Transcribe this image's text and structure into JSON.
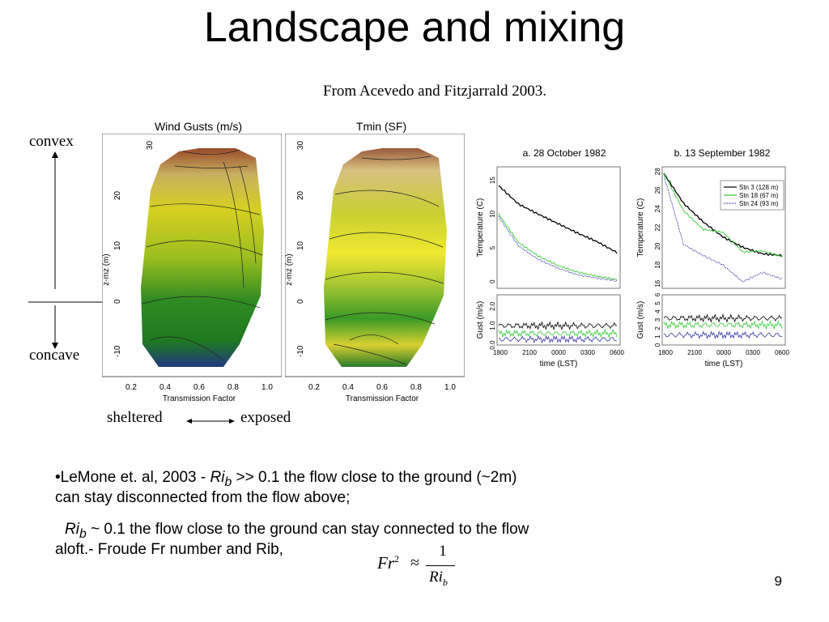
{
  "slide": {
    "title": "Landscape and mixing",
    "citation": "From Acevedo and Fitzjarrald 2003.",
    "page_number": "9"
  },
  "contour_panels": [
    {
      "title": "Wind Gusts (m/s)",
      "xlabel": "Transmission Factor",
      "ylabel": "z-mz (m)",
      "x_ticks": [
        "0.2",
        "0.4",
        "0.6",
        "0.8",
        "1.0"
      ],
      "y_ticks": [
        "30",
        "20",
        "10",
        "0",
        "-10"
      ]
    },
    {
      "title": "Tmin (SF)",
      "xlabel": "Transmission Factor",
      "ylabel": "z-mz (m)",
      "x_ticks": [
        "0.2",
        "0.4",
        "0.6",
        "0.8",
        "1.0"
      ],
      "y_ticks": [
        "30",
        "20",
        "10",
        "0",
        "-10"
      ]
    }
  ],
  "annotations": {
    "convex": "convex",
    "concave": "concave",
    "sheltered": "sheltered",
    "exposed": "exposed"
  },
  "chart_data": [
    {
      "type": "line",
      "title": "a. 28 October 1982",
      "xlabel": "time (LST)",
      "x_ticks": [
        "1800",
        "2100",
        "0000",
        "0300",
        "0600"
      ],
      "top_ylabel": "Temperature (C)",
      "top_y_ticks": [
        "15",
        "10",
        "5",
        "0"
      ],
      "top_ylim": [
        -1,
        17
      ],
      "bottom_ylabel": "Gust (m/s)",
      "bottom_y_ticks": [
        "0.0",
        "1.0",
        "2.0"
      ],
      "bottom_ylim": [
        0,
        2.6
      ],
      "temperature_series": [
        {
          "name": "Stn 3 (128 m)",
          "color": "#000000",
          "y": [
            14.2,
            11.5,
            10.0,
            8.6,
            7.2,
            5.9,
            4.3
          ]
        },
        {
          "name": "Stn 18 (67 m)",
          "color": "#33cc33",
          "y": [
            10.0,
            5.8,
            3.8,
            2.4,
            1.4,
            0.8,
            0.3
          ]
        },
        {
          "name": "Stn 24 (93 m)",
          "color": "#3333aa",
          "y": [
            9.6,
            5.3,
            3.3,
            2.0,
            1.0,
            0.5,
            0.1
          ]
        }
      ],
      "gust_series": [
        {
          "color": "#000000",
          "level": 1.0
        },
        {
          "color": "#33cc33",
          "level": 0.6
        },
        {
          "color": "#3333aa",
          "level": 0.3
        }
      ]
    },
    {
      "type": "line",
      "title": "b. 13 September 1982",
      "xlabel": "time (LST)",
      "x_ticks": [
        "1800",
        "2100",
        "0000",
        "0300",
        "0600"
      ],
      "top_ylabel": "Temperature (C)",
      "top_y_ticks": [
        "28",
        "26",
        "24",
        "22",
        "20",
        "18",
        "16"
      ],
      "top_ylim": [
        15.5,
        28.5
      ],
      "bottom_ylabel": "Gust (m/s)",
      "bottom_y_ticks": [
        "0",
        "1",
        "2",
        "3",
        "4",
        "5",
        "6"
      ],
      "bottom_ylim": [
        0,
        6
      ],
      "legend": [
        "Stn 3 (128 m)",
        "Stn 18 (67 m)",
        "Stn 24 (93 m)"
      ],
      "temperature_series": [
        {
          "name": "Stn 3 (128 m)",
          "color": "#000000",
          "y": [
            27.8,
            24.6,
            22.6,
            21.0,
            19.9,
            19.2,
            19.0
          ]
        },
        {
          "name": "Stn 18 (67 m)",
          "color": "#33cc33",
          "y": [
            27.8,
            23.8,
            21.8,
            21.5,
            19.4,
            19.5,
            18.9
          ]
        },
        {
          "name": "Stn 24 (93 m)",
          "color": "#3333aa",
          "y": [
            27.6,
            20.2,
            19.0,
            18.0,
            16.2,
            17.2,
            16.5
          ]
        }
      ],
      "gust_series": [
        {
          "color": "#000000",
          "level": 3.2
        },
        {
          "color": "#33cc33",
          "level": 2.4
        },
        {
          "color": "#3333aa",
          "level": 1.2
        }
      ]
    }
  ],
  "bullet_text": {
    "line1_prefix": "•LeMone et. al, 2003 - ",
    "ri": "Ri",
    "sub_b": "b",
    "line1_suffix": " >> 0.1 the flow close to the ground (~2m)",
    "line2": "can stay disconnected from the flow above;",
    "line3_suffix": " ~ 0.1 the flow close to the ground can stay connected to the flow",
    "line4": "aloft.- Froude Fr number and Rib,"
  },
  "formula": {
    "fr": "Fr",
    "sup": "2",
    "approx": "≈",
    "numerator": "1",
    "den_ri": "Ri",
    "den_sub": "b"
  }
}
